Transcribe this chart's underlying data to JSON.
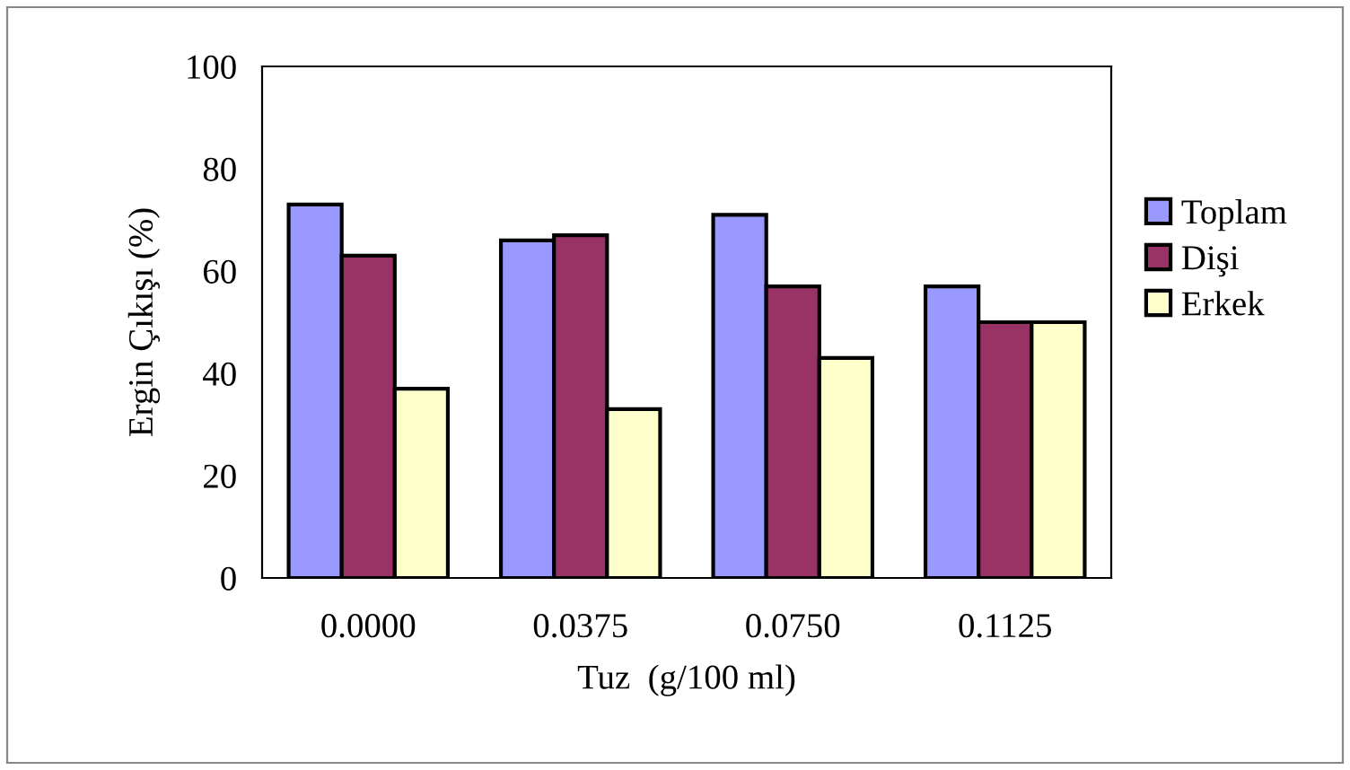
{
  "chart_data": {
    "type": "bar",
    "xlabel": "Tuz  (g/100 ml)",
    "ylabel": "Ergin Çıkışı (%)",
    "categories": [
      "0.0000",
      "0.0375",
      "0.0750",
      "0.1125"
    ],
    "series": [
      {
        "name": "Toplam",
        "color": "#9999ff",
        "values": [
          73,
          66,
          71,
          57
        ]
      },
      {
        "name": "Dişi",
        "color": "#993366",
        "values": [
          63,
          67,
          57,
          50
        ]
      },
      {
        "name": "Erkek",
        "color": "#ffffcc",
        "values": [
          37,
          33,
          43,
          50
        ]
      }
    ],
    "ylim": [
      0,
      100
    ],
    "yticks": [
      0,
      20,
      40,
      60,
      80,
      100
    ],
    "grid": false,
    "legend": "right"
  }
}
